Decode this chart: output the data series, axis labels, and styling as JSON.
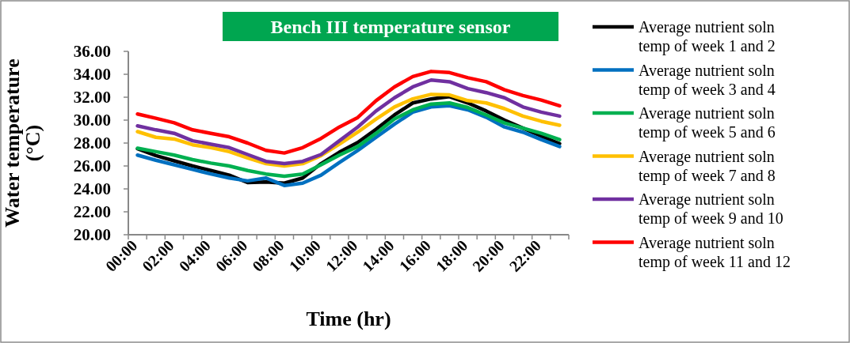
{
  "chart_data": {
    "type": "line",
    "title": "Bench III temperature sensor",
    "xlabel": "Time (hr)",
    "ylabel": "Water temperature (°C)",
    "categories": [
      "00:00",
      null,
      "02:00",
      null,
      "04:00",
      null,
      "06:00",
      null,
      "08:00",
      null,
      "10:00",
      null,
      "12:00",
      null,
      "14:00",
      null,
      "16:00",
      null,
      "18:00",
      null,
      "20:00",
      null,
      "22:00",
      null
    ],
    "ylim": [
      20,
      36
    ],
    "yticks": [
      {
        "value": 20,
        "label": "20.00"
      },
      {
        "value": 22,
        "label": "22.00"
      },
      {
        "value": 24,
        "label": "24.00"
      },
      {
        "value": 26,
        "label": "26.00"
      },
      {
        "value": 28,
        "label": "28.00"
      },
      {
        "value": 30,
        "label": "30.00"
      },
      {
        "value": 32,
        "label": "32.00"
      },
      {
        "value": 34,
        "label": "34.00"
      },
      {
        "value": 36,
        "label": "36.00"
      }
    ],
    "grid": false,
    "legend": "right",
    "marker": "none",
    "line_style": "solid",
    "series": [
      {
        "name": "Average nutrient soln temp of week 1 and 2",
        "color": "#000000",
        "values": [
          27.5,
          26.9,
          26.45,
          26.0,
          25.6,
          25.2,
          24.55,
          24.6,
          24.5,
          24.95,
          26.2,
          27.2,
          28.05,
          29.2,
          30.45,
          31.5,
          31.85,
          32.05,
          31.5,
          30.8,
          30.0,
          29.3,
          28.6,
          27.95
        ]
      },
      {
        "name": "Average nutrient soln temp of week 3 and 4",
        "color": "#0070c0",
        "values": [
          26.95,
          26.5,
          26.1,
          25.7,
          25.3,
          24.95,
          24.7,
          24.95,
          24.3,
          24.5,
          25.2,
          26.3,
          27.35,
          28.5,
          29.65,
          30.7,
          31.15,
          31.25,
          30.9,
          30.25,
          29.4,
          28.95,
          28.3,
          27.7
        ]
      },
      {
        "name": "Average nutrient soln temp of week 5 and 6",
        "color": "#00b050",
        "values": [
          27.55,
          27.25,
          26.95,
          26.55,
          26.25,
          26.0,
          25.6,
          25.3,
          25.1,
          25.3,
          26.1,
          26.95,
          27.7,
          28.85,
          30.1,
          30.9,
          31.4,
          31.5,
          31.1,
          30.45,
          29.75,
          29.3,
          28.85,
          28.3
        ]
      },
      {
        "name": "Average nutrient soln temp of week 7 and 8",
        "color": "#ffc000",
        "values": [
          29.0,
          28.5,
          28.35,
          27.85,
          27.6,
          27.25,
          26.7,
          26.2,
          26.0,
          26.2,
          26.9,
          27.9,
          28.95,
          30.1,
          31.15,
          31.85,
          32.25,
          32.2,
          31.7,
          31.5,
          31.0,
          30.35,
          29.9,
          29.55
        ]
      },
      {
        "name": "Average nutrient soln temp of week 9 and 10",
        "color": "#7030a0",
        "values": [
          29.5,
          29.15,
          28.85,
          28.2,
          27.9,
          27.6,
          27.0,
          26.4,
          26.2,
          26.4,
          27.0,
          28.2,
          29.4,
          30.8,
          31.95,
          32.9,
          33.5,
          33.35,
          32.75,
          32.4,
          31.95,
          31.15,
          30.7,
          30.35
        ]
      },
      {
        "name": "Average nutrient soln temp of week 11 and 12",
        "color": "#ff0000",
        "values": [
          30.53,
          30.16,
          29.77,
          29.15,
          28.85,
          28.55,
          28.0,
          27.36,
          27.13,
          27.6,
          28.4,
          29.4,
          30.23,
          31.7,
          32.9,
          33.8,
          34.25,
          34.15,
          33.7,
          33.35,
          32.65,
          32.15,
          31.75,
          31.25
        ]
      }
    ]
  }
}
